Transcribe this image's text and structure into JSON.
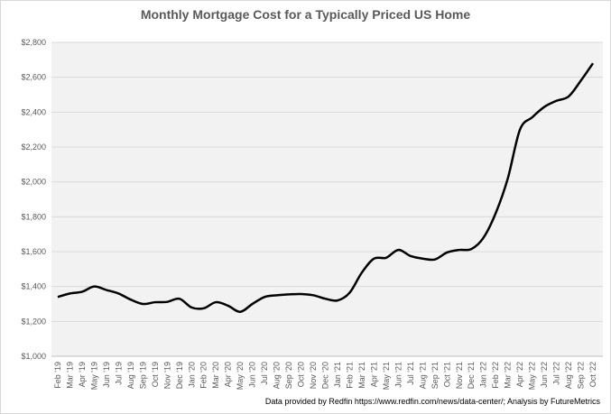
{
  "chart_data": {
    "type": "line",
    "title": "Monthly Mortgage Cost for a Typically Priced US Home",
    "xlabel": "",
    "ylabel": "",
    "ylim": [
      1000,
      2800
    ],
    "yticks": [
      1000,
      1200,
      1400,
      1600,
      1800,
      2000,
      2200,
      2400,
      2600,
      2800
    ],
    "ytick_labels": [
      "$1,000",
      "$1,200",
      "$1,400",
      "$1,600",
      "$1,800",
      "$2,000",
      "$2,200",
      "$2,400",
      "$2,600",
      "$2,800"
    ],
    "grid": true,
    "line_color": "#000000",
    "plot_background": "#f2f2f2",
    "categories": [
      "Feb '19",
      "Mar '19",
      "Apr '19",
      "May '19",
      "Jun '19",
      "Jul '19",
      "Aug '19",
      "Sep '19",
      "Oct '19",
      "Nov '19",
      "Dec '19",
      "Jan '20",
      "Feb '20",
      "Mar '20",
      "Apr '20",
      "May '20",
      "Jun '20",
      "Jul '20",
      "Aug '20",
      "Sep '20",
      "Oct '20",
      "Nov '20",
      "Dec '20",
      "Jan '21",
      "Feb '21",
      "Mar '21",
      "Apr '21",
      "May '21",
      "Jun '21",
      "Jul '21",
      "Aug '21",
      "Sep '21",
      "Oct '21",
      "Nov '21",
      "Dec '21",
      "Jan '22",
      "Feb '22",
      "Mar '22",
      "Apr '22",
      "May '22",
      "Jun '22",
      "Jul '22",
      "Aug '22",
      "Sep '22",
      "Oct '22"
    ],
    "series": [
      {
        "name": "Monthly Mortgage Cost",
        "values": [
          1340,
          1360,
          1370,
          1400,
          1380,
          1360,
          1325,
          1300,
          1310,
          1312,
          1330,
          1280,
          1275,
          1310,
          1290,
          1255,
          1300,
          1340,
          1350,
          1355,
          1357,
          1350,
          1330,
          1320,
          1365,
          1480,
          1560,
          1565,
          1610,
          1575,
          1560,
          1555,
          1595,
          1610,
          1615,
          1680,
          1820,
          2020,
          2300,
          2370,
          2430,
          2465,
          2490,
          2580,
          2680
        ]
      }
    ]
  },
  "footer": "Data provided by Redfin https://www.redfin.com/news/data-center/; Analysis by FutureMetrics"
}
